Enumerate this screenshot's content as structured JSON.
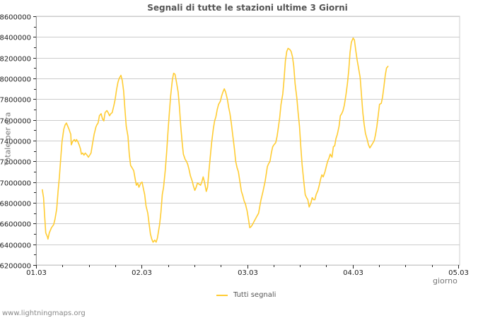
{
  "chart_data": {
    "type": "line",
    "title": "Segnali di tutte le stazioni ultime 3 Giorni",
    "xlabel": "giorno",
    "ylabel": "Totale per ora",
    "ylim": [
      6200000,
      8600000
    ],
    "y_ticks": [
      6200000,
      6400000,
      6600000,
      6800000,
      7000000,
      7200000,
      7400000,
      7600000,
      7800000,
      8000000,
      8200000,
      8400000,
      8600000
    ],
    "x_ticks": [
      "01.03",
      "02.03",
      "03.03",
      "04.03",
      "05.03"
    ],
    "grid": true,
    "legend_position": "bottom",
    "series": [
      {
        "name": "Tutti segnali",
        "color": "#ffcc33",
        "x_hours": [
          1.4,
          1.7,
          1.9,
          2.2,
          2.6,
          2.7,
          3.0,
          3.5,
          4.0,
          4.3,
          4.7,
          5.0,
          5.3,
          5.6,
          5.9,
          6.3,
          6.6,
          6.9,
          7.2,
          7.5,
          7.9,
          8.0,
          8.3,
          8.7,
          9.0,
          9.2,
          9.5,
          9.8,
          10.1,
          10.3,
          10.6,
          10.9,
          11.2,
          11.6,
          11.9,
          12.2,
          12.5,
          12.8,
          13.2,
          13.6,
          13.8,
          14.1,
          14.4,
          14.8,
          15.1,
          15.4,
          15.7,
          16.1,
          16.4,
          16.7,
          17.0,
          17.3,
          17.7,
          18.0,
          18.3,
          18.6,
          18.9,
          19.3,
          19.6,
          19.9,
          20.2,
          20.5,
          20.9,
          21.2,
          21.5,
          21.8,
          22.2,
          22.5,
          22.8,
          23.1,
          23.4,
          23.8,
          24.1,
          24.4,
          24.7,
          25.0,
          25.4,
          25.7,
          26.0,
          26.3,
          26.6,
          27.0,
          27.3,
          27.6,
          28.1,
          28.4,
          28.7,
          29.0,
          29.4,
          29.7,
          30.0,
          30.3,
          30.6,
          31.0,
          31.3,
          31.6,
          31.9,
          32.3,
          32.6,
          32.9,
          33.2,
          33.5,
          33.9,
          34.2,
          34.5,
          34.8,
          35.1,
          35.5,
          35.8,
          36.1,
          36.4,
          36.7,
          37.1,
          37.4,
          37.7,
          38.0,
          38.3,
          38.7,
          39.0,
          39.3,
          39.6,
          39.9,
          40.3,
          40.6,
          40.9,
          41.2,
          41.5,
          41.9,
          42.2,
          42.5,
          42.8,
          43.1,
          43.5,
          43.8,
          44.1,
          44.4,
          44.7,
          45.1,
          45.4,
          45.7,
          46.0,
          46.3,
          46.7,
          47.0,
          47.3,
          47.6,
          48.0,
          48.3,
          48.6,
          48.9,
          49.2,
          49.7,
          50.2,
          50.6,
          51.1,
          51.6,
          52.1,
          52.6,
          52.9,
          53.2,
          53.5,
          53.8,
          54.1,
          54.5,
          54.8,
          55.1,
          55.4,
          55.7,
          56.1,
          56.4,
          56.7,
          57.0,
          57.3,
          57.7,
          58.0,
          58.3,
          58.6,
          58.9,
          59.3,
          59.6,
          59.9,
          60.2,
          60.5,
          60.9,
          61.2,
          61.5,
          61.8,
          62.1,
          62.5,
          62.8,
          63.1,
          63.4,
          63.7,
          64.1,
          64.4,
          64.7,
          65.0,
          65.3,
          65.7,
          66.0,
          66.3,
          66.6,
          66.9,
          67.3,
          67.6,
          67.9,
          68.2,
          68.5,
          68.9,
          69.2,
          69.5,
          69.8,
          70.1,
          70.5,
          70.8,
          71.1,
          71.4,
          71.7,
          72.1,
          72.4,
          72.7,
          73.0,
          73.3,
          73.7,
          74.0,
          74.3,
          74.6,
          74.9,
          75.3,
          75.6,
          75.9,
          76.2,
          76.5,
          76.9,
          77.2,
          77.5,
          77.8,
          78.1,
          78.5,
          78.8,
          79.1,
          79.4,
          79.7,
          80.1,
          80.4
        ],
        "values": [
          6930000,
          6850000,
          6710000,
          6510000,
          6470000,
          6450000,
          6510000,
          6560000,
          6590000,
          6640000,
          6740000,
          6910000,
          7050000,
          7220000,
          7390000,
          7510000,
          7550000,
          7570000,
          7540000,
          7510000,
          7460000,
          7360000,
          7390000,
          7410000,
          7390000,
          7410000,
          7390000,
          7360000,
          7320000,
          7270000,
          7280000,
          7260000,
          7280000,
          7260000,
          7240000,
          7260000,
          7280000,
          7360000,
          7460000,
          7530000,
          7550000,
          7570000,
          7640000,
          7660000,
          7610000,
          7590000,
          7670000,
          7690000,
          7670000,
          7640000,
          7660000,
          7670000,
          7740000,
          7800000,
          7890000,
          7960000,
          8000000,
          8030000,
          7980000,
          7880000,
          7710000,
          7540000,
          7440000,
          7270000,
          7160000,
          7140000,
          7110000,
          7040000,
          6970000,
          6990000,
          6950000,
          6990000,
          7000000,
          6940000,
          6880000,
          6770000,
          6700000,
          6600000,
          6500000,
          6450000,
          6420000,
          6440000,
          6420000,
          6460000,
          6590000,
          6710000,
          6880000,
          6950000,
          7120000,
          7290000,
          7490000,
          7660000,
          7830000,
          7990000,
          8050000,
          8040000,
          7970000,
          7870000,
          7730000,
          7540000,
          7390000,
          7270000,
          7220000,
          7200000,
          7170000,
          7120000,
          7060000,
          7010000,
          6960000,
          6920000,
          6950000,
          6990000,
          6980000,
          6970000,
          7000000,
          7050000,
          7000000,
          6910000,
          6950000,
          7100000,
          7240000,
          7370000,
          7510000,
          7590000,
          7630000,
          7700000,
          7750000,
          7780000,
          7830000,
          7870000,
          7900000,
          7870000,
          7800000,
          7720000,
          7660000,
          7570000,
          7460000,
          7320000,
          7200000,
          7140000,
          7100000,
          7020000,
          6910000,
          6870000,
          6820000,
          6790000,
          6720000,
          6640000,
          6560000,
          6570000,
          6590000,
          6630000,
          6670000,
          6700000,
          6820000,
          6910000,
          7010000,
          7150000,
          7180000,
          7200000,
          7280000,
          7340000,
          7360000,
          7380000,
          7440000,
          7530000,
          7620000,
          7750000,
          7850000,
          7990000,
          8170000,
          8260000,
          8290000,
          8280000,
          8260000,
          8210000,
          8120000,
          7950000,
          7810000,
          7670000,
          7540000,
          7340000,
          7170000,
          7000000,
          6880000,
          6850000,
          6830000,
          6760000,
          6800000,
          6850000,
          6830000,
          6830000,
          6880000,
          6920000,
          6970000,
          7030000,
          7070000,
          7050000,
          7100000,
          7150000,
          7200000,
          7230000,
          7270000,
          7240000,
          7340000,
          7350000,
          7420000,
          7460000,
          7540000,
          7640000,
          7660000,
          7690000,
          7740000,
          7850000,
          7950000,
          8080000,
          8250000,
          8350000,
          8390000,
          8370000,
          8270000,
          8180000,
          8110000,
          8010000,
          7840000,
          7670000,
          7560000,
          7470000,
          7410000,
          7360000,
          7330000,
          7350000,
          7370000,
          7400000,
          7460000,
          7540000,
          7640000,
          7750000,
          7760000,
          7820000,
          7920000,
          8030000,
          8100000,
          8120000
        ]
      }
    ]
  },
  "title": "Segnali di tutte le stazioni ultime 3 Giorni",
  "axis": {
    "ylabel": "Totale per ora",
    "xlabel": "giorno",
    "y_tick_labels": [
      "6200000",
      "6400000",
      "6600000",
      "6800000",
      "7000000",
      "7200000",
      "7400000",
      "7600000",
      "7800000",
      "8000000",
      "8200000",
      "8400000",
      "8600000"
    ],
    "x_tick_labels": [
      "01.03",
      "02.03",
      "03.03",
      "04.03",
      "05.03"
    ]
  },
  "legend": {
    "label": "Tutti segnali",
    "color": "#ffcc33"
  },
  "footer": "www.lightningmaps.org",
  "colors": {
    "grid": "#cccccc",
    "line": "#ffcc33",
    "axis": "#999999"
  }
}
